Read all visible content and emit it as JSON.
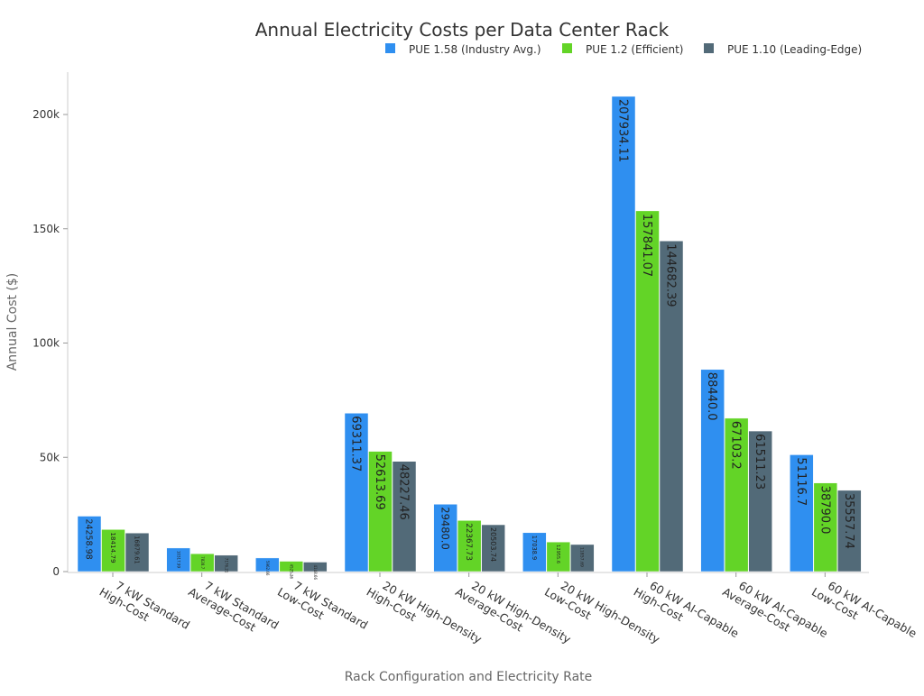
{
  "chart_data": {
    "type": "bar",
    "title": "Annual Electricity Costs per Data Center Rack",
    "xlabel": "Rack Configuration and Electricity Rate",
    "ylabel": "Annual Cost ($)",
    "ylim": [
      0,
      218000
    ],
    "yticks": [
      0,
      50000,
      100000,
      150000,
      200000
    ],
    "ytick_labels": [
      "0",
      "50k",
      "100k",
      "150k",
      "200k"
    ],
    "grid": false,
    "legend_position": "top-right",
    "categories": [
      [
        "7 kW Standard",
        "High-Cost"
      ],
      [
        "7 kW Standard",
        "Average-Cost"
      ],
      [
        "7 kW Standard",
        "Low-Cost"
      ],
      [
        "20 kW High-Density",
        "High-Cost"
      ],
      [
        "20 kW High-Density",
        "Average-Cost"
      ],
      [
        "20 kW High-Density",
        "Low-Cost"
      ],
      [
        "60 kW AI-Capable",
        "High-Cost"
      ],
      [
        "60 kW AI-Capable",
        "Average-Cost"
      ],
      [
        "60 kW AI-Capable",
        "Low-Cost"
      ]
    ],
    "series": [
      {
        "name": "PUE 1.58 (Industry Avg.)",
        "color": "#2f8ff0",
        "values": [
          24258.98,
          10317.99,
          5962.66,
          69311.37,
          29480.0,
          17038.9,
          207934.11,
          88440.0,
          51116.7
        ],
        "labels": [
          "24258.98",
          "10317.99",
          "5962.66",
          "69311.37",
          "29480.0",
          "17038.9",
          "207934.11",
          "88440.0",
          "51116.7"
        ]
      },
      {
        "name": "PUE 1.2 (Efficient)",
        "color": "#63d427",
        "values": [
          18414.79,
          7828.7,
          4525.26,
          52613.69,
          22367.73,
          12955.6,
          157841.07,
          67103.2,
          38790.0
        ],
        "labels": [
          "18414.79",
          "7828.7",
          "4525.26",
          "52613.69",
          "22367.73",
          "12955.6",
          "157841.07",
          "67103.2",
          "38790.0"
        ]
      },
      {
        "name": "PUE 1.10 (Leading-Edge)",
        "color": "#526a78",
        "values": [
          16879.61,
          7176.21,
          4148.66,
          48227.46,
          20503.74,
          11857.69,
          144682.39,
          61511.23,
          35557.74
        ],
        "labels": [
          "16879.61",
          "7176.21",
          "4148.66",
          "48227.46",
          "20503.74",
          "11857.69",
          "144682.39",
          "61511.23",
          "35557.74"
        ]
      }
    ]
  }
}
